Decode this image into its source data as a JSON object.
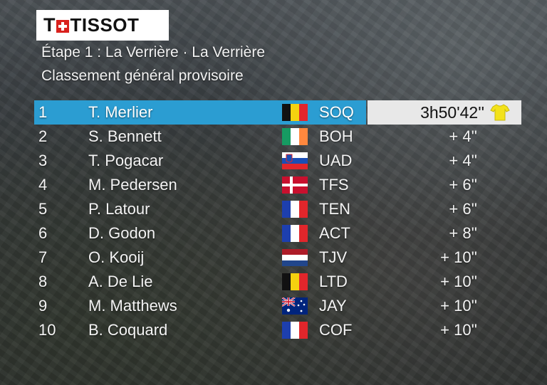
{
  "brand": {
    "t_glyph": "T",
    "name": "TISSOT"
  },
  "header": {
    "stage": "Étape 1 : La Verrière · La Verrière",
    "subtitle": "Classement général provisoire"
  },
  "colors": {
    "leader_bar": "#2b9dd2",
    "logo_red": "#d9211d",
    "jersey_yellow": "#f3e21a"
  },
  "standings": [
    {
      "pos": "1",
      "name": "T. Merlier",
      "flag": "belgium",
      "team": "SOQ",
      "gap": "3h50'42''"
    },
    {
      "pos": "2",
      "name": "S. Bennett",
      "flag": "ireland",
      "team": "BOH",
      "gap": "+ 4''"
    },
    {
      "pos": "3",
      "name": "T. Pogacar",
      "flag": "slovenia",
      "team": "UAD",
      "gap": "+ 4''"
    },
    {
      "pos": "4",
      "name": "M. Pedersen",
      "flag": "denmark",
      "team": "TFS",
      "gap": "+ 6''"
    },
    {
      "pos": "5",
      "name": "P. Latour",
      "flag": "france",
      "team": "TEN",
      "gap": "+ 6''"
    },
    {
      "pos": "6",
      "name": "D. Godon",
      "flag": "france",
      "team": "ACT",
      "gap": "+ 8''"
    },
    {
      "pos": "7",
      "name": "O. Kooij",
      "flag": "netherlands",
      "team": "TJV",
      "gap": "+ 10''"
    },
    {
      "pos": "8",
      "name": "A. De Lie",
      "flag": "belgium",
      "team": "LTD",
      "gap": "+ 10''"
    },
    {
      "pos": "9",
      "name": "M. Matthews",
      "flag": "australia",
      "team": "JAY",
      "gap": "+ 10''"
    },
    {
      "pos": "10",
      "name": "B. Coquard",
      "flag": "france",
      "team": "COF",
      "gap": "+ 10''"
    }
  ]
}
